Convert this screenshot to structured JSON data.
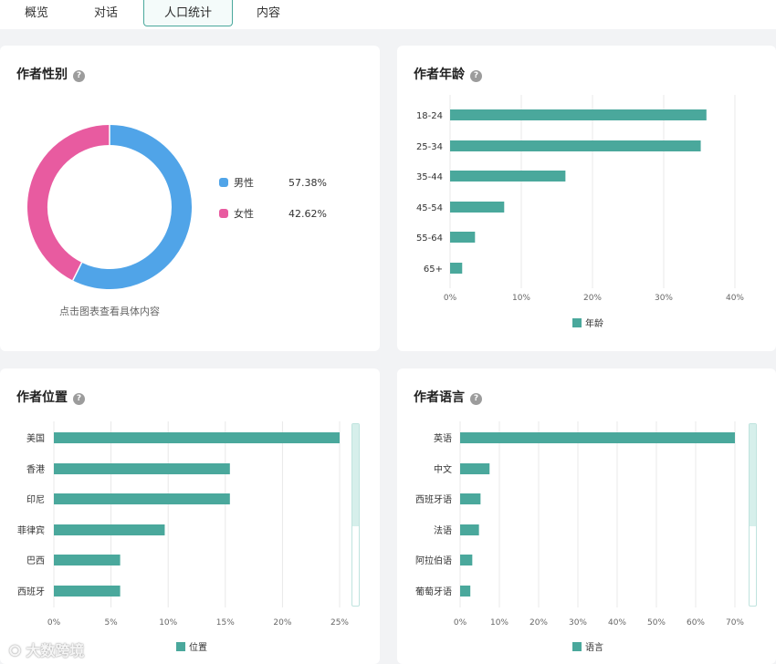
{
  "tabs": [
    {
      "label": "概览"
    },
    {
      "label": "对话"
    },
    {
      "label": "人口统计"
    },
    {
      "label": "内容"
    }
  ],
  "colors": {
    "accent": "#4aa89c",
    "male": "#50a4e8",
    "female": "#e85ba0"
  },
  "gender": {
    "title": "作者性别",
    "help": "?",
    "note": "点击图表查看具体内容",
    "items": [
      {
        "label": "男性",
        "value": "57.38%",
        "pct": 57.38
      },
      {
        "label": "女性",
        "value": "42.62%",
        "pct": 42.62
      }
    ]
  },
  "age": {
    "title": "作者年龄",
    "help": "?",
    "legend": "年龄",
    "chart_data": {
      "type": "bar",
      "orientation": "horizontal",
      "categories": [
        "18-24",
        "25-34",
        "35-44",
        "45-54",
        "55-64",
        "65+"
      ],
      "values": [
        36,
        35.2,
        16.2,
        7.6,
        3.5,
        1.7
      ],
      "xlim": [
        0,
        40
      ],
      "ticks": [
        "0%",
        "10%",
        "20%",
        "30%",
        "40%"
      ],
      "tick_values": [
        0,
        10,
        20,
        30,
        40
      ]
    }
  },
  "location": {
    "title": "作者位置",
    "help": "?",
    "legend": "位置",
    "chart_data": {
      "type": "bar",
      "orientation": "horizontal",
      "categories": [
        "美国",
        "香港",
        "印尼",
        "菲律宾",
        "巴西",
        "西班牙"
      ],
      "values": [
        25,
        15.4,
        15.4,
        9.7,
        5.8,
        5.8
      ],
      "xlim": [
        0,
        25
      ],
      "ticks": [
        "0%",
        "5%",
        "10%",
        "15%",
        "20%",
        "25%"
      ],
      "tick_values": [
        0,
        5,
        10,
        15,
        20,
        25
      ]
    }
  },
  "language": {
    "title": "作者语言",
    "help": "?",
    "legend": "语言",
    "chart_data": {
      "type": "bar",
      "orientation": "horizontal",
      "categories": [
        "英语",
        "中文",
        "西班牙语",
        "法语",
        "阿拉伯语",
        "葡萄牙语"
      ],
      "values": [
        70,
        7.5,
        5.2,
        4.8,
        3.1,
        2.6
      ],
      "xlim": [
        0,
        70
      ],
      "ticks": [
        "0%",
        "10%",
        "20%",
        "30%",
        "40%",
        "50%",
        "60%",
        "70%"
      ],
      "tick_values": [
        0,
        10,
        20,
        30,
        40,
        50,
        60,
        70
      ]
    }
  },
  "watermark": "大数跨境"
}
